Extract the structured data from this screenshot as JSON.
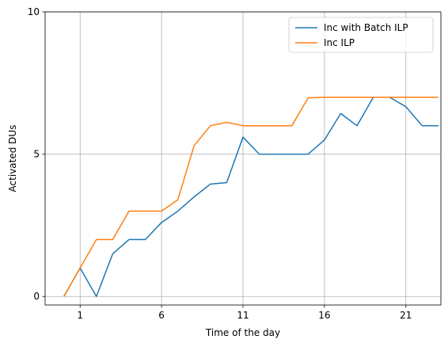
{
  "chart_data": {
    "type": "line",
    "title": "",
    "xlabel": "Time of the day",
    "ylabel": "Activated DUs",
    "xlim": [
      -0.15,
      24.15
    ],
    "ylim": [
      -0.3,
      10
    ],
    "xticks": [
      2,
      7,
      12,
      17,
      22
    ],
    "xtick_labels": [
      "1",
      "6",
      "11",
      "16",
      "21"
    ],
    "yticks": [
      0,
      5,
      10
    ],
    "ytick_labels": [
      "0",
      "5",
      "10"
    ],
    "grid": true,
    "legend_position": "top-right",
    "series": [
      {
        "name": "Inc with Batch ILP",
        "color": "#1f77b4",
        "x": [
          1,
          2,
          3,
          4,
          5,
          6,
          7,
          8,
          9,
          10,
          11,
          12,
          13,
          14,
          15,
          16,
          17,
          18,
          19,
          20,
          21,
          22,
          23,
          24
        ],
        "y": [
          0,
          1,
          0,
          1.5,
          2,
          2,
          2.6,
          3,
          3.5,
          3.95,
          4,
          5.6,
          5,
          5,
          5,
          5,
          5.5,
          6.43,
          6,
          7,
          7,
          6.67,
          6,
          6
        ]
      },
      {
        "name": "Inc ILP",
        "color": "#ff7f0e",
        "x": [
          1,
          2,
          3,
          4,
          5,
          6,
          7,
          8,
          9,
          10,
          11,
          12,
          13,
          14,
          15,
          16,
          17,
          18,
          19,
          20,
          21,
          22,
          23,
          24
        ],
        "y": [
          0,
          1,
          2,
          2,
          3,
          3,
          3,
          3.4,
          5.3,
          6,
          6.12,
          6,
          6,
          6,
          6,
          6.98,
          7,
          7,
          7,
          7,
          7,
          7,
          7,
          7
        ]
      }
    ]
  }
}
